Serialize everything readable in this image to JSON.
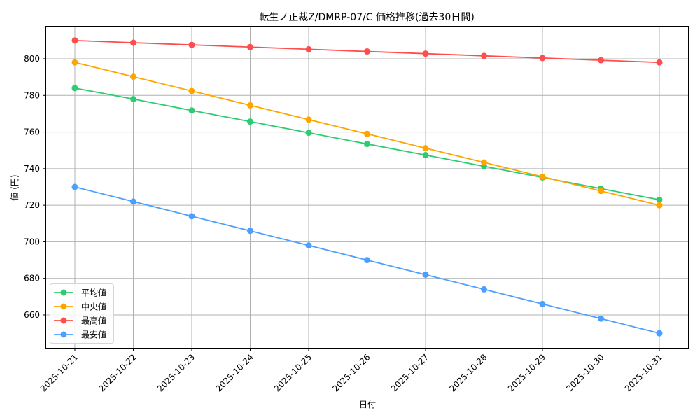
{
  "chart_data": {
    "type": "line",
    "title": "転生ノ正裁Z/DMRP-07/C 価格推移(過去30日間)",
    "xlabel": "日付",
    "ylabel": "値 (円)",
    "categories": [
      "2025-10-21",
      "2025-10-22",
      "2025-10-23",
      "2025-10-24",
      "2025-10-25",
      "2025-10-26",
      "2025-10-27",
      "2025-10-28",
      "2025-10-29",
      "2025-10-30",
      "2025-10-31"
    ],
    "series": [
      {
        "name": "平均値",
        "color": "#2ecc71",
        "values": [
          784,
          778,
          771.8,
          765.7,
          759.6,
          753.5,
          747.4,
          741.3,
          735.2,
          729.1,
          723
        ]
      },
      {
        "name": "中央値",
        "color": "#ffa500",
        "values": [
          798,
          790.2,
          782.4,
          774.6,
          766.8,
          759,
          751.2,
          743.4,
          735.6,
          727.8,
          720
        ]
      },
      {
        "name": "最高値",
        "color": "#ff4d4d",
        "values": [
          810,
          808.8,
          807.6,
          806.4,
          805.2,
          804,
          802.8,
          801.6,
          800.4,
          799.2,
          798
        ]
      },
      {
        "name": "最安値",
        "color": "#4d9fff",
        "values": [
          730,
          722,
          714,
          706,
          698,
          690,
          682,
          674,
          666,
          658,
          650
        ]
      }
    ],
    "yticks": [
      660,
      680,
      700,
      720,
      740,
      760,
      780,
      800
    ],
    "ylim": [
      642,
      818
    ],
    "grid": true,
    "legend_position": "lower left"
  }
}
